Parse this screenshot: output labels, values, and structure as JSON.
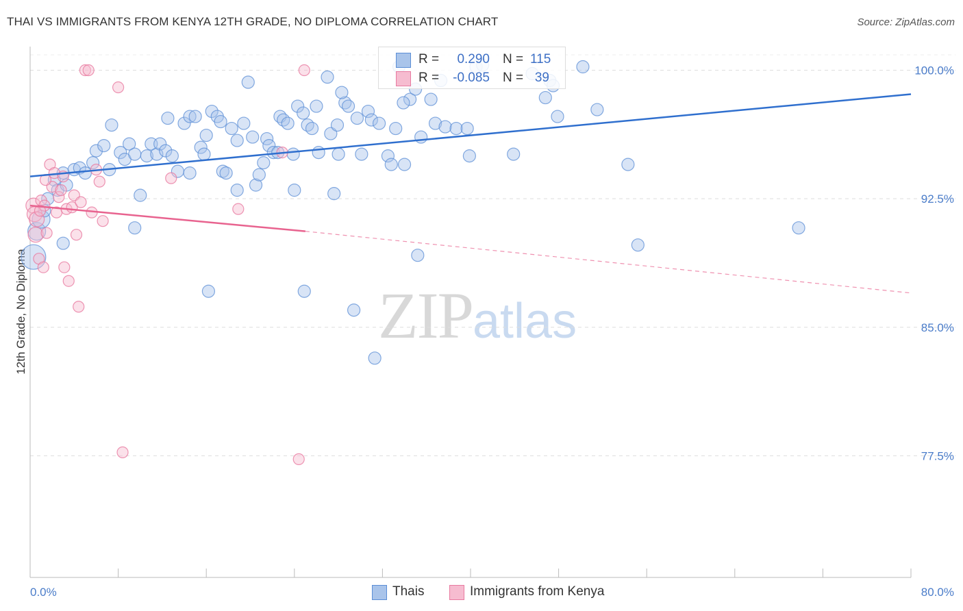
{
  "title": "THAI VS IMMIGRANTS FROM KENYA 12TH GRADE, NO DIPLOMA CORRELATION CHART",
  "source": "Source: ZipAtlas.com",
  "watermark": {
    "zip": "ZIP",
    "atlas": "atlas"
  },
  "legend_top": {
    "rows": [
      {
        "r_label": "R =",
        "r_value": "0.290",
        "n_label": "N =",
        "n_value": "115"
      },
      {
        "r_label": "R =",
        "r_value": "-0.085",
        "n_label": "N =",
        "n_value": "39"
      }
    ]
  },
  "legend_bottom": {
    "items": [
      "Thais",
      "Immigrants from Kenya"
    ]
  },
  "colors": {
    "thais_fill": "#a9c4ea",
    "thais_stroke": "#5b8ed6",
    "thais_line": "#2f6fce",
    "kenya_fill": "#f6bcd0",
    "kenya_stroke": "#e87aa0",
    "kenya_line": "#e8638f",
    "grid": "#dddddd",
    "axis_text": "#4a7cc9"
  },
  "chart_data": {
    "type": "scatter",
    "title": "THAI VS IMMIGRANTS FROM KENYA 12TH GRADE, NO DIPLOMA CORRELATION CHART",
    "xlabel": "",
    "ylabel": "12th Grade, No Diploma",
    "xlim": [
      0,
      80
    ],
    "ylim": [
      70.4,
      101.3
    ],
    "x_tick_labels": [
      "0.0%",
      "80.0%"
    ],
    "y_ticks": [
      77.5,
      85.0,
      92.5,
      100.0
    ],
    "y_tick_labels": [
      "77.5%",
      "85.0%",
      "92.5%",
      "100.0%"
    ],
    "grid": true,
    "legend_position": "top-center",
    "series": [
      {
        "name": "Thais",
        "r": 0.29,
        "n": 115,
        "trend": {
          "x": [
            0,
            80
          ],
          "y": [
            93.8,
            98.6
          ]
        },
        "points": [
          [
            0.3,
            89.1
          ],
          [
            0.6,
            90.6
          ],
          [
            1.0,
            91.3
          ],
          [
            1.3,
            91.8
          ],
          [
            1.6,
            92.5
          ],
          [
            2.2,
            93.6
          ],
          [
            2.5,
            93.0
          ],
          [
            3.0,
            94.0
          ],
          [
            3.3,
            93.3
          ],
          [
            3.0,
            89.9
          ],
          [
            4.0,
            94.2
          ],
          [
            4.5,
            94.3
          ],
          [
            5.0,
            94.0
          ],
          [
            5.7,
            94.6
          ],
          [
            6.0,
            95.3
          ],
          [
            6.7,
            95.6
          ],
          [
            7.2,
            94.2
          ],
          [
            7.4,
            96.8
          ],
          [
            8.2,
            95.2
          ],
          [
            8.6,
            94.8
          ],
          [
            9.0,
            95.7
          ],
          [
            9.5,
            95.1
          ],
          [
            9.5,
            90.8
          ],
          [
            10.0,
            92.7
          ],
          [
            10.6,
            95.0
          ],
          [
            11.0,
            95.7
          ],
          [
            11.5,
            95.1
          ],
          [
            11.8,
            95.7
          ],
          [
            12.3,
            95.3
          ],
          [
            12.5,
            97.2
          ],
          [
            12.9,
            95.0
          ],
          [
            13.4,
            94.1
          ],
          [
            14.0,
            96.9
          ],
          [
            14.5,
            97.3
          ],
          [
            14.5,
            94.0
          ],
          [
            15.0,
            97.3
          ],
          [
            15.5,
            95.5
          ],
          [
            15.8,
            95.1
          ],
          [
            16.0,
            96.2
          ],
          [
            16.2,
            87.1
          ],
          [
            16.5,
            97.6
          ],
          [
            17.0,
            97.3
          ],
          [
            17.3,
            97.0
          ],
          [
            17.5,
            94.1
          ],
          [
            17.8,
            94.0
          ],
          [
            18.3,
            96.6
          ],
          [
            18.8,
            95.9
          ],
          [
            18.8,
            93.0
          ],
          [
            19.4,
            96.9
          ],
          [
            19.8,
            99.3
          ],
          [
            20.2,
            96.1
          ],
          [
            20.5,
            93.3
          ],
          [
            20.8,
            93.9
          ],
          [
            21.2,
            94.6
          ],
          [
            21.5,
            96.0
          ],
          [
            21.7,
            95.6
          ],
          [
            22.1,
            95.2
          ],
          [
            22.5,
            95.2
          ],
          [
            22.7,
            97.3
          ],
          [
            23.0,
            97.1
          ],
          [
            23.4,
            96.9
          ],
          [
            23.9,
            95.1
          ],
          [
            24.0,
            93.0
          ],
          [
            24.3,
            97.9
          ],
          [
            24.8,
            97.5
          ],
          [
            24.9,
            87.1
          ],
          [
            25.2,
            96.8
          ],
          [
            25.6,
            96.6
          ],
          [
            26.0,
            97.9
          ],
          [
            26.2,
            95.2
          ],
          [
            27.0,
            99.6
          ],
          [
            27.3,
            96.3
          ],
          [
            27.6,
            92.8
          ],
          [
            27.9,
            96.8
          ],
          [
            28.0,
            95.1
          ],
          [
            28.6,
            98.1
          ],
          [
            28.9,
            97.9
          ],
          [
            29.4,
            86.0
          ],
          [
            29.7,
            97.2
          ],
          [
            30.1,
            95.1
          ],
          [
            30.7,
            97.6
          ],
          [
            31.0,
            97.1
          ],
          [
            31.3,
            83.2
          ],
          [
            31.7,
            96.9
          ],
          [
            32.5,
            95.0
          ],
          [
            32.8,
            94.5
          ],
          [
            33.2,
            96.6
          ],
          [
            33.5,
            100.2
          ],
          [
            34.0,
            94.5
          ],
          [
            34.5,
            98.3
          ],
          [
            35.0,
            98.9
          ],
          [
            35.2,
            89.2
          ],
          [
            35.5,
            96.1
          ],
          [
            36.4,
            98.3
          ],
          [
            36.8,
            96.9
          ],
          [
            37.3,
            99.4
          ],
          [
            37.7,
            96.7
          ],
          [
            38.7,
            96.6
          ],
          [
            39.7,
            96.6
          ],
          [
            39.9,
            95.0
          ],
          [
            40.5,
            100.2
          ],
          [
            41.1,
            100.3
          ],
          [
            43.9,
            95.1
          ],
          [
            46.8,
            98.4
          ],
          [
            47.2,
            99.4
          ],
          [
            47.5,
            99.1
          ],
          [
            47.9,
            97.3
          ],
          [
            50.2,
            100.2
          ],
          [
            51.5,
            97.7
          ],
          [
            54.3,
            94.5
          ],
          [
            55.2,
            89.8
          ],
          [
            69.8,
            90.8
          ],
          [
            45.6,
            99.8
          ],
          [
            28.3,
            98.7
          ],
          [
            33.9,
            98.1
          ]
        ]
      },
      {
        "name": "Immigrants from Kenya",
        "r": -0.085,
        "n": 39,
        "trend": {
          "x": [
            0,
            25
          ],
          "y": [
            92.1,
            90.6
          ]
        },
        "trend_extension": {
          "x": [
            25,
            80
          ],
          "y": [
            90.6,
            87.0
          ]
        },
        "points": [
          [
            0.3,
            92.1
          ],
          [
            0.4,
            91.6
          ],
          [
            0.5,
            90.4
          ],
          [
            0.6,
            91.3
          ],
          [
            0.8,
            89.0
          ],
          [
            1.0,
            92.4
          ],
          [
            1.2,
            88.5
          ],
          [
            1.3,
            92.1
          ],
          [
            1.5,
            90.5
          ],
          [
            1.8,
            94.5
          ],
          [
            2.0,
            93.2
          ],
          [
            2.2,
            94.0
          ],
          [
            2.4,
            91.7
          ],
          [
            2.6,
            92.6
          ],
          [
            2.8,
            93.0
          ],
          [
            3.0,
            93.8
          ],
          [
            3.1,
            88.5
          ],
          [
            3.3,
            91.9
          ],
          [
            3.5,
            87.7
          ],
          [
            3.8,
            92.0
          ],
          [
            4.0,
            92.7
          ],
          [
            4.2,
            90.4
          ],
          [
            4.4,
            86.2
          ],
          [
            4.6,
            92.3
          ],
          [
            5.0,
            100.0
          ],
          [
            5.3,
            100.0
          ],
          [
            5.6,
            91.7
          ],
          [
            6.0,
            94.2
          ],
          [
            6.3,
            93.5
          ],
          [
            6.6,
            91.2
          ],
          [
            8.0,
            99.0
          ],
          [
            8.4,
            77.7
          ],
          [
            12.8,
            93.7
          ],
          [
            18.9,
            91.9
          ],
          [
            22.9,
            95.2
          ],
          [
            24.4,
            77.3
          ],
          [
            24.9,
            100.0
          ],
          [
            0.9,
            91.8
          ],
          [
            1.4,
            93.6
          ]
        ]
      }
    ]
  }
}
